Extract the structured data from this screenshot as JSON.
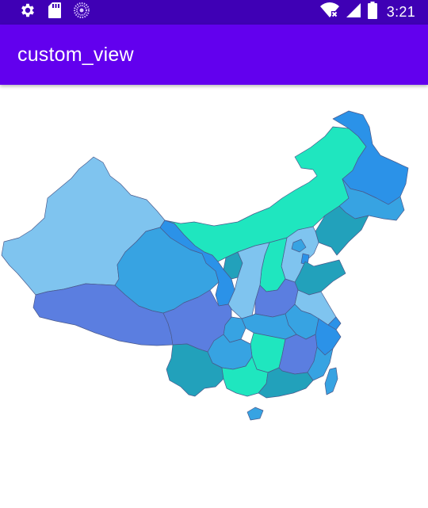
{
  "status_bar": {
    "time": "3:21",
    "left_icons": [
      "gear-icon",
      "sd-card-icon",
      "loading-dots-icon"
    ],
    "right_icons": [
      "wifi-icon",
      "cell-signal-icon",
      "battery-icon"
    ]
  },
  "app_bar": {
    "title": "custom_view"
  },
  "map": {
    "palette": {
      "light_blue": "#7fc4ef",
      "mid_blue": "#37a3e2",
      "blue": "#2b92e8",
      "indigo": "#5b7ee0",
      "teal": "#22a1bb",
      "mint": "#1fe6bf"
    }
  }
}
